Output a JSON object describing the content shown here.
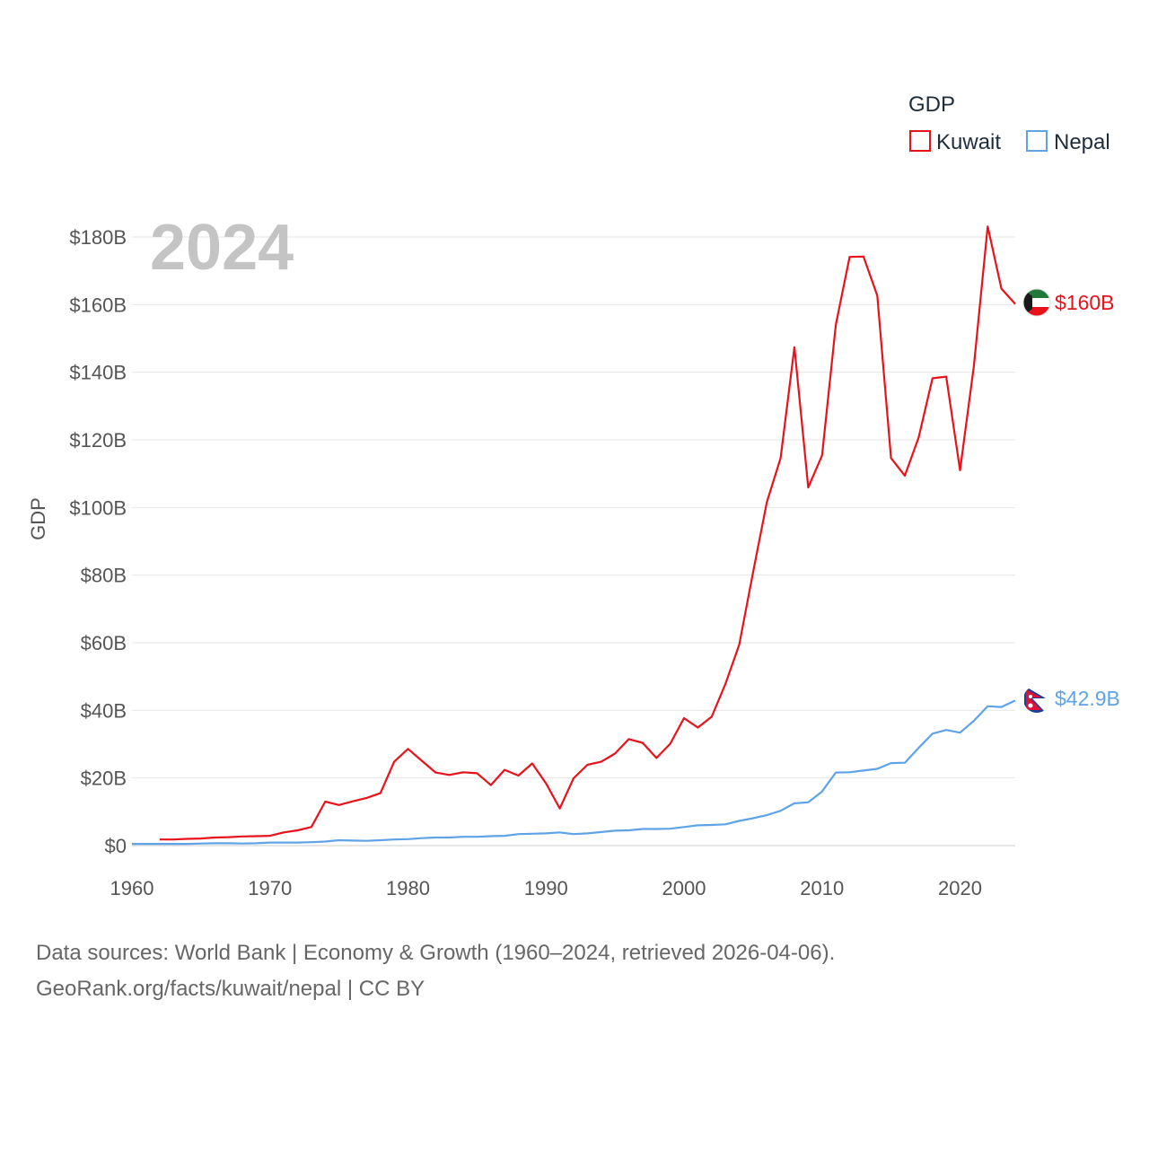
{
  "chart_data": {
    "type": "line",
    "year_label": "2024",
    "legend_title": "GDP",
    "ylabel": "GDP",
    "xlim": [
      1960,
      2024
    ],
    "ylim": [
      0,
      180
    ],
    "x_ticks": [
      1960,
      1970,
      1980,
      1990,
      2000,
      2010,
      2020
    ],
    "y_ticks": [
      {
        "value": 0,
        "label": "$0"
      },
      {
        "value": 20,
        "label": "$20B"
      },
      {
        "value": 40,
        "label": "$40B"
      },
      {
        "value": 60,
        "label": "$60B"
      },
      {
        "value": 80,
        "label": "$80B"
      },
      {
        "value": 100,
        "label": "$100B"
      },
      {
        "value": 120,
        "label": "$120B"
      },
      {
        "value": 140,
        "label": "$140B"
      },
      {
        "value": 160,
        "label": "$160B"
      },
      {
        "value": 180,
        "label": "$180B"
      }
    ],
    "series": [
      {
        "name": "Kuwait",
        "color": "#e8121a",
        "end_label": "$160B",
        "flag": "kuwait-flag",
        "x": [
          1962,
          1963,
          1964,
          1965,
          1966,
          1967,
          1968,
          1969,
          1970,
          1971,
          1972,
          1973,
          1974,
          1975,
          1976,
          1977,
          1978,
          1979,
          1980,
          1981,
          1982,
          1983,
          1984,
          1985,
          1986,
          1987,
          1988,
          1989,
          1990,
          1991,
          1992,
          1993,
          1994,
          1995,
          1996,
          1997,
          1998,
          1999,
          2000,
          2001,
          2002,
          2003,
          2004,
          2005,
          2006,
          2007,
          2008,
          2009,
          2010,
          2011,
          2012,
          2013,
          2014,
          2015,
          2016,
          2017,
          2018,
          2019,
          2020,
          2021,
          2022,
          2023,
          2024
        ],
        "values": [
          1.8,
          1.8,
          2.0,
          2.1,
          2.4,
          2.5,
          2.7,
          2.8,
          2.9,
          3.9,
          4.5,
          5.5,
          13.0,
          12.0,
          13.1,
          14.1,
          15.5,
          24.8,
          28.6,
          25.1,
          21.6,
          20.9,
          21.7,
          21.4,
          17.9,
          22.4,
          20.7,
          24.3,
          18.4,
          11.0,
          19.9,
          23.9,
          24.8,
          27.2,
          31.5,
          30.4,
          25.9,
          30.1,
          37.7,
          34.9,
          38.1,
          47.8,
          59.4,
          80.8,
          101.6,
          114.6,
          147.4,
          105.9,
          115.4,
          154.0,
          174.1,
          174.2,
          162.7,
          114.6,
          109.4,
          120.7,
          138.2,
          138.7,
          111.0,
          141.8,
          183.1,
          164.7,
          160.2
        ]
      },
      {
        "name": "Nepal",
        "color": "#5fa3e6",
        "end_label": "$42.9B",
        "flag": "nepal-flag",
        "x": [
          1960,
          1961,
          1962,
          1963,
          1964,
          1965,
          1966,
          1967,
          1968,
          1969,
          1970,
          1971,
          1972,
          1973,
          1974,
          1975,
          1976,
          1977,
          1978,
          1979,
          1980,
          1981,
          1982,
          1983,
          1984,
          1985,
          1986,
          1987,
          1988,
          1989,
          1990,
          1991,
          1992,
          1993,
          1994,
          1995,
          1996,
          1997,
          1998,
          1999,
          2000,
          2001,
          2002,
          2003,
          2004,
          2005,
          2006,
          2007,
          2008,
          2009,
          2010,
          2011,
          2012,
          2013,
          2014,
          2015,
          2016,
          2017,
          2018,
          2019,
          2020,
          2021,
          2022,
          2023,
          2024
        ],
        "values": [
          0.5,
          0.5,
          0.5,
          0.5,
          0.5,
          0.6,
          0.7,
          0.7,
          0.6,
          0.7,
          0.9,
          0.9,
          0.9,
          1.0,
          1.2,
          1.6,
          1.5,
          1.4,
          1.6,
          1.8,
          1.9,
          2.2,
          2.4,
          2.4,
          2.6,
          2.6,
          2.8,
          2.9,
          3.4,
          3.5,
          3.6,
          3.9,
          3.4,
          3.6,
          4.0,
          4.4,
          4.5,
          4.9,
          4.9,
          5.0,
          5.5,
          6.0,
          6.1,
          6.3,
          7.3,
          8.1,
          9.0,
          10.3,
          12.5,
          12.8,
          16.0,
          21.6,
          21.7,
          22.2,
          22.7,
          24.4,
          24.5,
          28.9,
          33.1,
          34.2,
          33.4,
          36.9,
          41.2,
          41.0,
          42.9
        ]
      }
    ],
    "source_lines": [
      "Data sources: World Bank | Economy & Growth (1960–2024, retrieved 2026-04-06).",
      "GeoRank.org/facts/kuwait/nepal | CC BY"
    ]
  }
}
